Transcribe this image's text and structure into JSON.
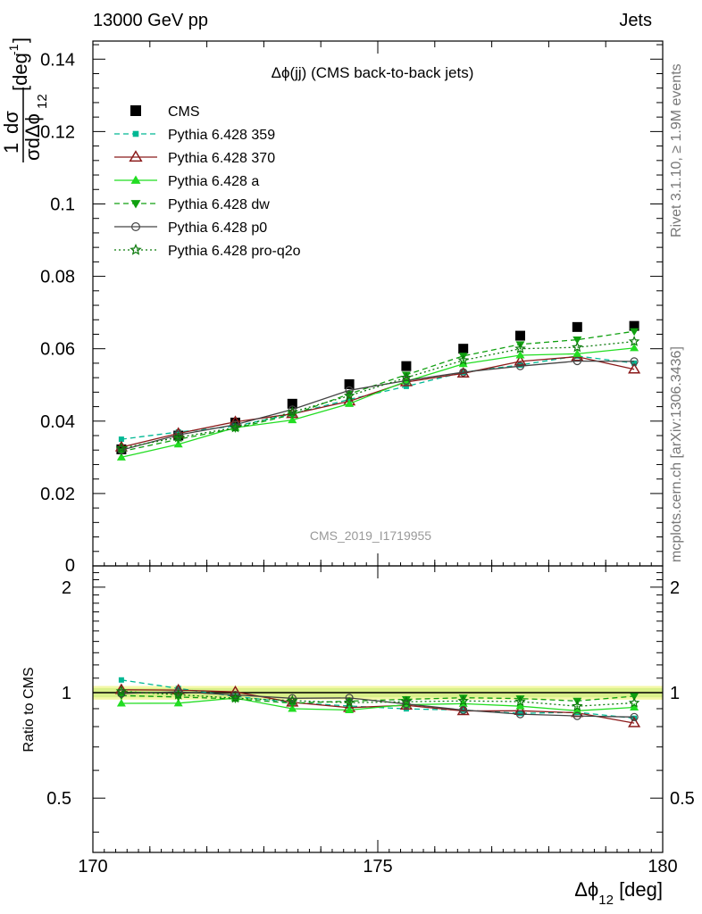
{
  "header": {
    "left": "13000 GeV pp",
    "right": "Jets"
  },
  "side_labels": {
    "rivet": "Rivet 3.1.10, ≥ 1.9M events",
    "mcplots": "mcplots.cern.ch [arXiv:1306.3436]"
  },
  "watermark": "CMS_2019_I1719955",
  "chart_data": [
    {
      "type": "line",
      "panel": "main",
      "title": "Δϕ(jj) (CMS back-to-back jets)",
      "xlabel": "Δϕ",
      "xlabel_sub": "12",
      "xlabel_unit": "[deg]",
      "ylabel": "1/σ dσ/dΔϕ_12 [deg^-1]",
      "xlim": [
        170,
        180
      ],
      "ylim": [
        0,
        0.145
      ],
      "x_ticks": [
        "170",
        "175",
        "180"
      ],
      "y_ticks": [
        "0",
        "0.02",
        "0.04",
        "0.06",
        "0.08",
        "0.1",
        "0.12",
        "0.14"
      ],
      "y_tick_values": [
        0,
        0.02,
        0.04,
        0.06,
        0.08,
        0.1,
        0.12,
        0.14
      ],
      "x": [
        170.5,
        171.5,
        172.5,
        173.5,
        174.5,
        175.5,
        176.5,
        177.5,
        178.5,
        179.5
      ],
      "legend_position": "top-left",
      "series": [
        {
          "name": "CMS",
          "color": "#000000",
          "marker": "square",
          "dash": "none",
          "values": [
            0.0322,
            0.036,
            0.0396,
            0.0448,
            0.0502,
            0.0552,
            0.06,
            0.0636,
            0.066,
            0.0663
          ]
        },
        {
          "name": "Pythia 6.428 359",
          "color": "#00b894",
          "marker": "small-square",
          "dash": "dashed",
          "values": [
            0.035,
            0.037,
            0.0386,
            0.042,
            0.046,
            0.0496,
            0.0535,
            0.0555,
            0.058,
            0.056
          ]
        },
        {
          "name": "Pythia 6.428 370",
          "color": "#8b1a1a",
          "marker": "open-triangle",
          "dash": "solid",
          "values": [
            0.0328,
            0.0366,
            0.0398,
            0.042,
            0.0455,
            0.0508,
            0.0532,
            0.0565,
            0.0578,
            0.0543
          ]
        },
        {
          "name": "Pythia 6.428 a",
          "color": "#22dd22",
          "marker": "triangle",
          "dash": "solid",
          "values": [
            0.03,
            0.0336,
            0.0382,
            0.0403,
            0.0448,
            0.051,
            0.0558,
            0.0582,
            0.0586,
            0.0602
          ]
        },
        {
          "name": "Pythia 6.428 dw",
          "color": "#10a010",
          "marker": "inverted-triangle",
          "dash": "dashed",
          "values": [
            0.0316,
            0.035,
            0.038,
            0.0418,
            0.0475,
            0.0528,
            0.058,
            0.0612,
            0.0625,
            0.0648
          ]
        },
        {
          "name": "Pythia 6.428 p0",
          "color": "#444444",
          "marker": "open-circle",
          "dash": "solid",
          "values": [
            0.032,
            0.0362,
            0.039,
            0.0432,
            0.0485,
            0.0512,
            0.0535,
            0.0552,
            0.0566,
            0.0565
          ]
        },
        {
          "name": "Pythia 6.428 pro-q2o",
          "color": "#0c7a0c",
          "marker": "star",
          "dash": "dotted",
          "values": [
            0.0325,
            0.0355,
            0.0382,
            0.0425,
            0.047,
            0.052,
            0.0568,
            0.06,
            0.0604,
            0.062
          ]
        }
      ]
    },
    {
      "type": "line",
      "panel": "ratio",
      "ylabel": "Ratio to CMS",
      "xlim": [
        170,
        180
      ],
      "ylim": [
        0.35,
        2.3
      ],
      "y_scale": "log",
      "y_ticks": [
        "0.5",
        "1",
        "2"
      ],
      "y_tick_values": [
        0.5,
        1,
        2
      ],
      "x": [
        170.5,
        171.5,
        172.5,
        173.5,
        174.5,
        175.5,
        176.5,
        177.5,
        178.5,
        179.5
      ],
      "reference_band": [
        0.97,
        1.03
      ],
      "series": [
        {
          "name": "Pythia 6.428 359",
          "values": [
            1.087,
            1.028,
            0.975,
            0.938,
            0.916,
            0.899,
            0.892,
            0.873,
            0.879,
            0.845
          ]
        },
        {
          "name": "Pythia 6.428 370",
          "values": [
            1.019,
            1.017,
            1.005,
            0.938,
            0.906,
            0.92,
            0.887,
            0.888,
            0.876,
            0.819
          ]
        },
        {
          "name": "Pythia 6.428 a",
          "values": [
            0.932,
            0.933,
            0.965,
            0.9,
            0.892,
            0.924,
            0.93,
            0.915,
            0.888,
            0.908
          ]
        },
        {
          "name": "Pythia 6.428 dw",
          "values": [
            0.981,
            0.972,
            0.96,
            0.933,
            0.946,
            0.957,
            0.967,
            0.962,
            0.947,
            0.977
          ]
        },
        {
          "name": "Pythia 6.428 p0",
          "values": [
            0.994,
            1.006,
            0.985,
            0.964,
            0.966,
            0.928,
            0.892,
            0.868,
            0.858,
            0.852
          ]
        },
        {
          "name": "Pythia 6.428 pro-q2o",
          "values": [
            1.009,
            0.986,
            0.965,
            0.949,
            0.936,
            0.942,
            0.947,
            0.943,
            0.915,
            0.935
          ]
        }
      ]
    }
  ]
}
